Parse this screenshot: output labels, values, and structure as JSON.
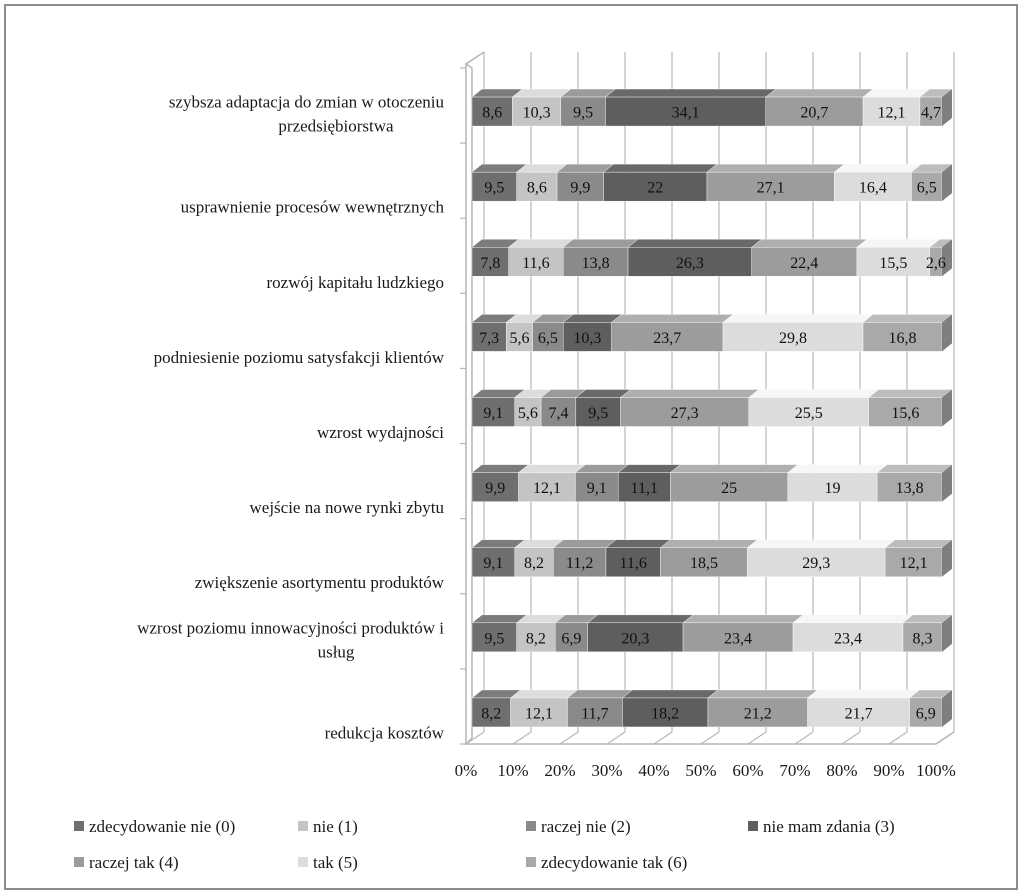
{
  "chart_data": {
    "type": "bar",
    "stacked": "percent",
    "orientation": "horizontal",
    "three_d": true,
    "categories": [
      "szybsza adaptacja do zmian w otoczeniu przedsiębiorstwa",
      "usprawnienie procesów wewnętrznych",
      "rozwój kapitału ludzkiego",
      "podniesienie poziomu satysfakcji klientów",
      "wzrost wydajności",
      "wejście na nowe rynki zbytu",
      "zwiększenie asortymentu produktów",
      "wzrost poziomu innowacyjności produktów i usług",
      "redukcja kosztów"
    ],
    "category_label_lines": [
      [
        "szybsza adaptacja do zmian w otoczeniu",
        "przedsiębiorstwa"
      ],
      [
        "usprawnienie procesów wewnętrznych"
      ],
      [
        "rozwój kapitału ludzkiego"
      ],
      [
        "podniesienie poziomu satysfakcji klientów"
      ],
      [
        "wzrost wydajności"
      ],
      [
        "wejście na nowe rynki zbytu"
      ],
      [
        "zwiększenie asortymentu produktów"
      ],
      [
        "wzrost poziomu innowacyjności produktów i",
        "usług"
      ],
      [
        "redukcja kosztów"
      ]
    ],
    "series": [
      {
        "name": "zdecydowanie nie (0)",
        "color": "#6f6f6f",
        "values": [
          8.6,
          9.5,
          7.8,
          7.3,
          9.1,
          9.9,
          9.1,
          9.5,
          8.2
        ],
        "labels": [
          "8,6",
          "9,5",
          "7,8",
          "7,3",
          "9,1",
          "9,9",
          "9,1",
          "9,5",
          "8,2"
        ]
      },
      {
        "name": "nie (1)",
        "color": "#c4c4c4",
        "values": [
          10.3,
          8.6,
          11.6,
          5.6,
          5.6,
          12.1,
          8.2,
          8.2,
          12.1
        ],
        "labels": [
          "10,3",
          "8,6",
          "11,6",
          "5,6",
          "5,6",
          "12,1",
          "8,2",
          "8,2",
          "12,1"
        ]
      },
      {
        "name": "raczej nie (2)",
        "color": "#8a8a8a",
        "values": [
          9.5,
          9.9,
          13.8,
          6.5,
          7.4,
          9.1,
          11.2,
          6.9,
          11.7
        ],
        "labels": [
          "9,5",
          "9,9",
          "13,8",
          "6,5",
          "7,4",
          "9,1",
          "11,2",
          "6,9",
          "11,7"
        ]
      },
      {
        "name": "nie mam zdania (3)",
        "color": "#5e5e5e",
        "values": [
          34.1,
          22,
          26.3,
          10.3,
          9.5,
          11.1,
          11.6,
          20.3,
          18.2
        ],
        "labels": [
          "34,1",
          "22",
          "26,3",
          "10,3",
          "9,5",
          "11,1",
          "11,6",
          "20,3",
          "18,2"
        ]
      },
      {
        "name": "raczej tak (4)",
        "color": "#9c9c9c",
        "values": [
          20.7,
          27.1,
          22.4,
          23.7,
          27.3,
          25,
          18.5,
          23.4,
          21.2
        ],
        "labels": [
          "20,7",
          "27,1",
          "22,4",
          "23,7",
          "27,3",
          "25",
          "18,5",
          "23,4",
          "21,2"
        ]
      },
      {
        "name": "tak (5)",
        "color": "#dcdcdc",
        "values": [
          12.1,
          16.4,
          15.5,
          29.8,
          25.5,
          19,
          29.3,
          23.4,
          21.7
        ],
        "labels": [
          "12,1",
          "16,4",
          "15,5",
          "29,8",
          "25,5",
          "19",
          "29,3",
          "23,4",
          "21,7"
        ]
      },
      {
        "name": "zdecydowanie tak (6)",
        "color": "#a9a9a9",
        "values": [
          4.7,
          6.5,
          2.6,
          16.8,
          15.6,
          13.8,
          12.1,
          8.3,
          6.9
        ],
        "labels": [
          "4,7",
          "6,5",
          "2,6",
          "16,8",
          "15,6",
          "13,8",
          "12,1",
          "8,3",
          "6,9"
        ]
      }
    ],
    "x_ticks": [
      "0%",
      "10%",
      "20%",
      "30%",
      "40%",
      "50%",
      "60%",
      "70%",
      "80%",
      "90%",
      "100%"
    ],
    "xlim": [
      0,
      100
    ],
    "grid": true,
    "legend_position": "bottom"
  }
}
